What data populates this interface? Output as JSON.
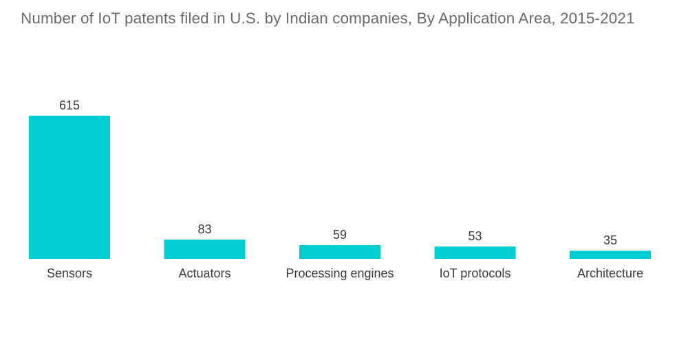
{
  "chart_data": {
    "type": "bar",
    "title": "Number of IoT patents filed in U.S. by Indian companies, By Application Area, 2015-2021",
    "categories": [
      "Sensors",
      "Actuators",
      "Processing engines",
      "IoT protocols",
      "Architecture"
    ],
    "values": [
      615,
      83,
      59,
      53,
      35
    ],
    "xlabel": "",
    "ylabel": "",
    "ylim": [
      0,
      615
    ],
    "grid": false,
    "legend": "none",
    "bar_color": "#00ced1",
    "show_value_labels": true
  }
}
